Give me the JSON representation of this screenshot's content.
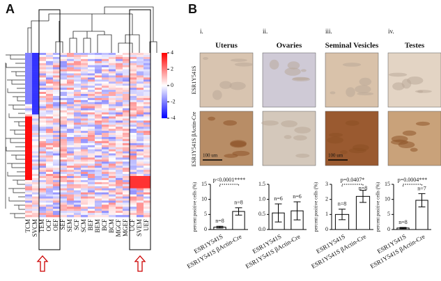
{
  "panel_a": {
    "label": "A",
    "columns": [
      "TCM",
      "SVCM",
      "TEM",
      "OCF",
      "OEF",
      "SEF",
      "SEM",
      "SCF",
      "SCM",
      "BEF",
      "BEM",
      "BCF",
      "BCM",
      "MGCF",
      "MGEF",
      "UCF",
      "SVEM",
      "UEF"
    ],
    "colorbar": {
      "ticks": [
        4,
        2,
        0,
        -2,
        -4
      ],
      "lim": [
        -4,
        4
      ]
    }
  },
  "panel_b": {
    "label": "B",
    "columns": [
      {
        "numeral": "i.",
        "title": "Uterus"
      },
      {
        "numeral": "ii.",
        "title": "Ovaries"
      },
      {
        "numeral": "iii.",
        "title": "Seminal Vesicles"
      },
      {
        "numeral": "iv.",
        "title": "Testes"
      }
    ],
    "rows": [
      "ESR1Y541S",
      "ESR1Y541S βActin-Cre"
    ],
    "scale_bar": "100 um"
  },
  "chart_data": [
    {
      "type": "bar",
      "ylabel": "percent positive cells (%)",
      "categories": [
        "ESR1Y541S",
        "ESR1Y541S βActin-Cre"
      ],
      "values": [
        0.8,
        6
      ],
      "errors": [
        0.3,
        1.2
      ],
      "n_labels": [
        "n=8",
        "n=8"
      ],
      "annotation": "p<0.0001****",
      "ylim": [
        0,
        15
      ],
      "yticks": [
        0,
        5,
        10,
        15
      ]
    },
    {
      "type": "bar",
      "categories": [
        "ESR1Y541S",
        "ESR1Y541S βActin-Cre"
      ],
      "values": [
        0.55,
        0.62
      ],
      "errors": [
        0.3,
        0.3
      ],
      "n_labels": [
        "n=6",
        "n=6"
      ],
      "ylim": [
        0,
        1.5
      ],
      "yticks": [
        {
          "value": 0,
          "label": "0.0"
        },
        {
          "value": 0.5,
          "label": "0.5"
        },
        {
          "value": 1,
          "label": "1.0"
        },
        {
          "value": 1.5,
          "label": "1.5"
        }
      ]
    },
    {
      "type": "bar",
      "ylabel": "percent positive cells (%)",
      "categories": [
        "ESR1Y541S",
        "ESR1Y541S βActin-Cre"
      ],
      "values": [
        1,
        2.2
      ],
      "errors": [
        0.35,
        0.4
      ],
      "n_labels": [
        "n=8",
        "n=8"
      ],
      "annotation": "p=0.0407*",
      "ylim": [
        0,
        3
      ],
      "yticks": [
        0,
        1,
        2,
        3
      ]
    },
    {
      "type": "bar",
      "ylabel": "percent positive cells (%)",
      "categories": [
        "ESR1Y541S",
        "ESR1Y541S βActin-Cre"
      ],
      "values": [
        0.5,
        9.7
      ],
      "errors": [
        0.2,
        2.2
      ],
      "n_labels": [
        "n=8",
        "n=7"
      ],
      "annotation": "p=0.0004***",
      "ylim": [
        0,
        15
      ],
      "yticks": [
        0,
        5,
        10,
        15
      ]
    }
  ]
}
